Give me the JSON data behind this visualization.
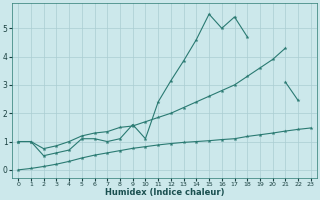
{
  "xlabel": "Humidex (Indice chaleur)",
  "background_color": "#cce8eb",
  "grid_color": "#aacdd2",
  "line_color": "#2a7a72",
  "xlim": [
    -0.5,
    23.5
  ],
  "ylim": [
    -0.3,
    5.9
  ],
  "x": [
    0,
    1,
    2,
    3,
    4,
    5,
    6,
    7,
    8,
    9,
    10,
    11,
    12,
    13,
    14,
    15,
    16,
    17,
    18,
    19,
    20,
    21,
    22,
    23
  ],
  "line1": [
    1.0,
    1.0,
    0.5,
    0.6,
    0.7,
    1.1,
    1.1,
    1.0,
    1.1,
    1.6,
    1.1,
    2.4,
    3.15,
    3.85,
    4.6,
    5.5,
    5.0,
    5.4,
    4.7,
    null,
    null,
    3.1,
    2.45,
    null
  ],
  "line2": [
    1.0,
    1.0,
    0.75,
    0.85,
    1.0,
    1.2,
    1.3,
    1.35,
    1.5,
    1.55,
    1.7,
    1.85,
    2.0,
    2.2,
    2.4,
    2.6,
    2.8,
    3.0,
    3.3,
    3.6,
    3.9,
    4.3,
    null,
    null
  ],
  "line3": [
    0.0,
    0.05,
    0.12,
    0.2,
    0.3,
    0.42,
    0.52,
    0.6,
    0.68,
    0.76,
    0.82,
    0.88,
    0.93,
    0.97,
    1.0,
    1.03,
    1.07,
    1.1,
    1.18,
    1.24,
    1.3,
    1.37,
    1.43,
    1.48
  ],
  "xticks": [
    0,
    1,
    2,
    3,
    4,
    5,
    6,
    7,
    8,
    9,
    10,
    11,
    12,
    13,
    14,
    15,
    16,
    17,
    18,
    19,
    20,
    21,
    22,
    23
  ],
  "yticks": [
    0,
    1,
    2,
    3,
    4,
    5
  ]
}
